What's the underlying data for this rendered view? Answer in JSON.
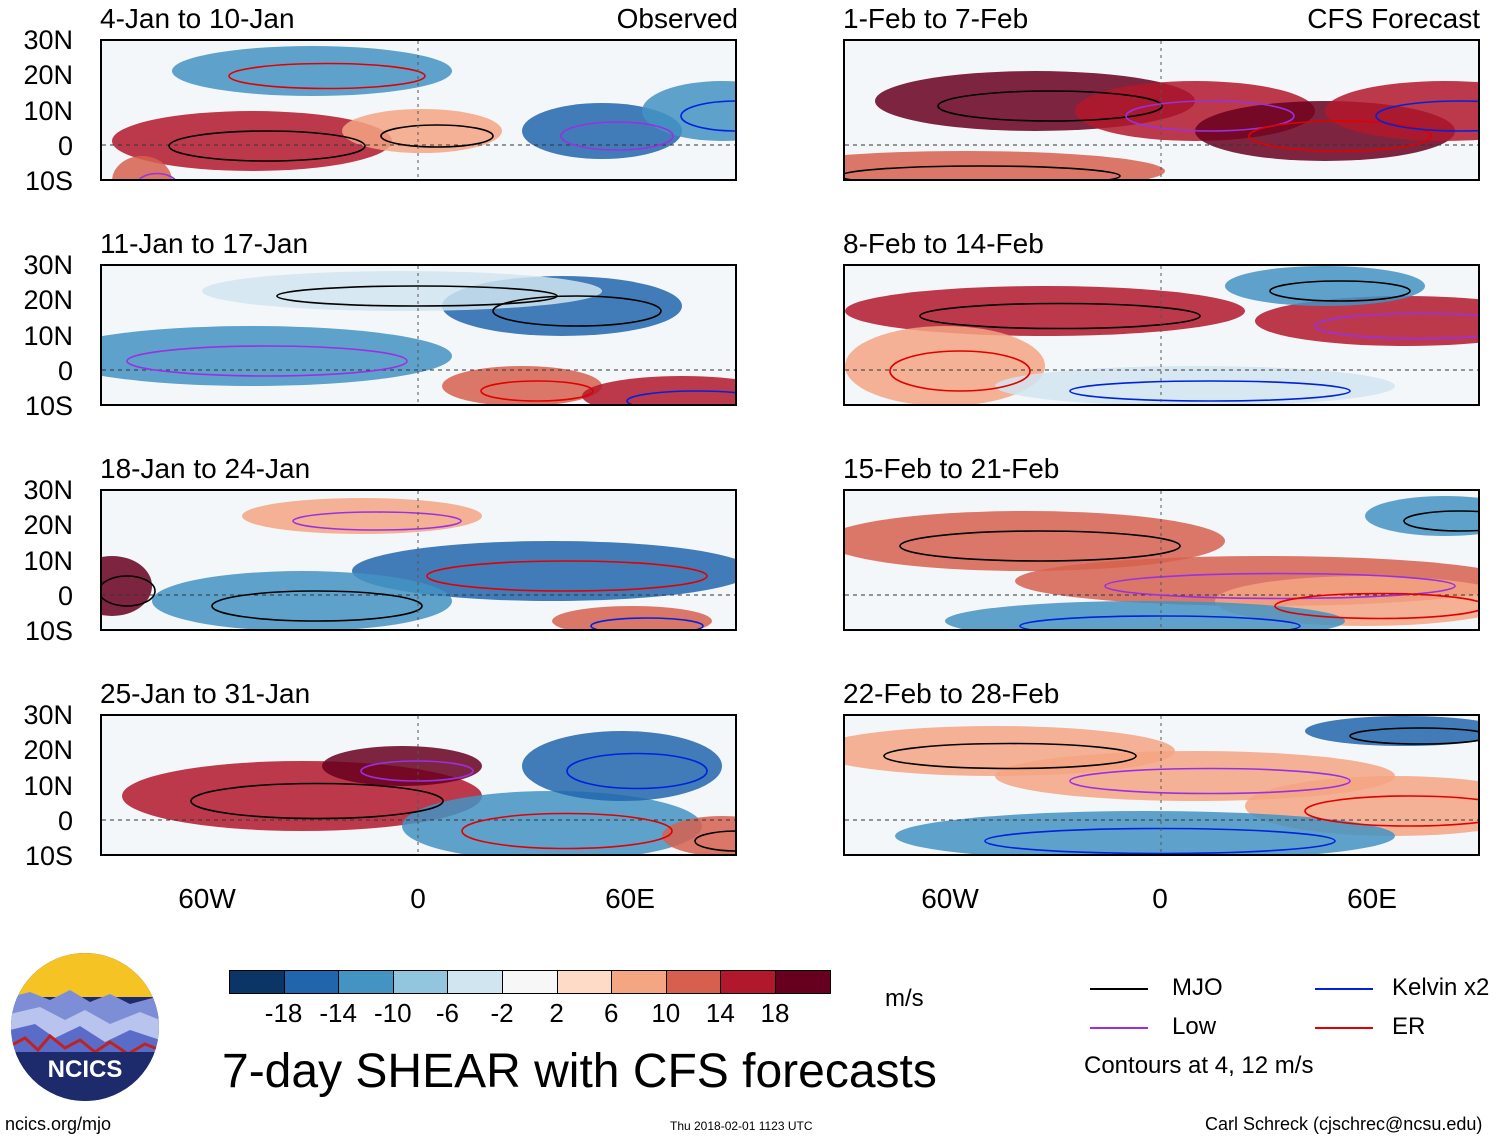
{
  "header": {
    "left_tag": "Observed",
    "right_tag": "CFS Forecast"
  },
  "observed_panels": [
    {
      "title": "4-Jan to 10-Jan"
    },
    {
      "title": "11-Jan to 17-Jan"
    },
    {
      "title": "18-Jan to 24-Jan"
    },
    {
      "title": "25-Jan to 31-Jan"
    }
  ],
  "forecast_panels": [
    {
      "title": "1-Feb to 7-Feb"
    },
    {
      "title": "8-Feb to 14-Feb"
    },
    {
      "title": "15-Feb to 21-Feb"
    },
    {
      "title": "22-Feb to 28-Feb"
    }
  ],
  "lat_labels": [
    "30N",
    "20N",
    "10N",
    "0",
    "10S"
  ],
  "lon_labels": [
    "60W",
    "0",
    "60E"
  ],
  "colorbar": {
    "unit": "m/s",
    "ticks": [
      "-18",
      "-14",
      "-10",
      "-6",
      "-2",
      "2",
      "6",
      "10",
      "14",
      "18"
    ],
    "colors": [
      "#0b3566",
      "#2166ac",
      "#4393c3",
      "#92c5de",
      "#d1e5f0",
      "#f7f7f7",
      "#fddbc7",
      "#f4a582",
      "#d6604d",
      "#b2182b",
      "#67001f"
    ]
  },
  "legend": {
    "items": [
      {
        "label": "MJO",
        "color": "#000000"
      },
      {
        "label": "Kelvin x2",
        "color": "#0022dd"
      },
      {
        "label": "Low",
        "color": "#9a30e0"
      },
      {
        "label": "ER",
        "color": "#e00000"
      }
    ],
    "contours_note": "Contours at 4, 12 m/s"
  },
  "footer": {
    "main_title": "7-day SHEAR with CFS forecasts",
    "logo_text": "NCICS",
    "url": "ncics.org/mjo",
    "timestamp": "Thu 2018-02-01 1123 UTC",
    "credit": "Carl Schreck (cjschrec@ncsu.edu)"
  }
}
